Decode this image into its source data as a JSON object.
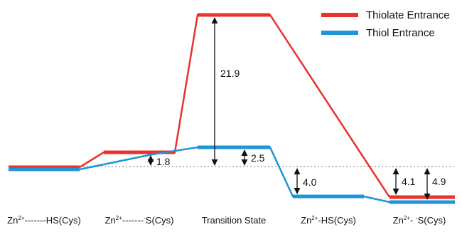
{
  "colors": {
    "thiolate": "#e8322c",
    "thiol": "#1d95d6",
    "reference": "#b9b9b9",
    "arrow": "#111111"
  },
  "legend": {
    "items": [
      {
        "label": "Thiolate Entrance",
        "color": "#e8322c"
      },
      {
        "label": "Thiol Entrance",
        "color": "#1d95d6"
      }
    ]
  },
  "states": [
    {
      "base": "Zn",
      "sup": "2+",
      "rest": "-------HS(Cys)"
    },
    {
      "base": "Zn",
      "sup": "2+",
      "rest": "-------",
      "sup2": "-",
      "rest2": "S(Cys)"
    },
    {
      "base": "Transition State"
    },
    {
      "base": "Zn",
      "sup": "2+",
      "rest": "-HS(Cys)"
    },
    {
      "base": "Zn",
      "sup": "2+",
      "rest": "- ",
      "sup2": "-",
      "rest2": "S(Cys)"
    }
  ],
  "energy_values": {
    "thiolate_complex": "1.8",
    "thiolate_barrier": "21.9",
    "thiol_barrier": "2.5",
    "thiol_product": "4.0",
    "product_gap": "4.1",
    "product_total": "4.9"
  }
}
